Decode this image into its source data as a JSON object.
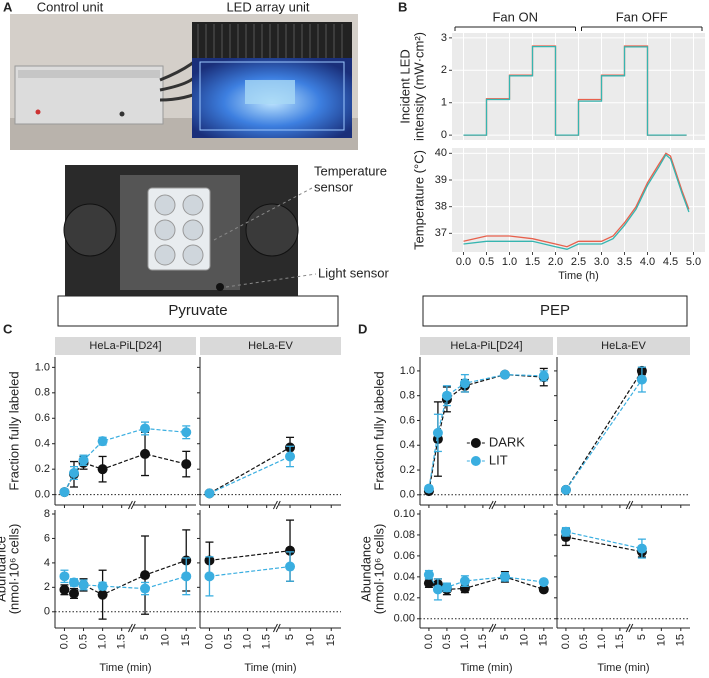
{
  "panel_labels": [
    "A",
    "B",
    "C",
    "D"
  ],
  "photos": {
    "labels": [
      "Control unit",
      "LED array unit"
    ],
    "callouts": [
      {
        "lines": [
          "Temperature",
          "sensor"
        ]
      },
      {
        "lines": [
          "Light sensor"
        ]
      }
    ]
  },
  "chart_data": [
    {
      "type": "line",
      "annotations": [
        "Fan ON",
        "Fan OFF"
      ],
      "ylabel": [
        "Incident LED",
        "intensity (mW·cm²)"
      ],
      "x": [
        0,
        0.5,
        0.5,
        1,
        1,
        1.5,
        1.5,
        2,
        2,
        2.5,
        2.5,
        3,
        3,
        3.5,
        3.5,
        4,
        4,
        4.85
      ],
      "series": [
        {
          "color": "#e8604c",
          "values": [
            0,
            0,
            1.12,
            1.12,
            1.85,
            1.85,
            2.75,
            2.75,
            0,
            0,
            1.1,
            1.1,
            1.85,
            1.85,
            2.75,
            2.75,
            0,
            0
          ]
        },
        {
          "color": "#36b5b0",
          "values": [
            0,
            0,
            1.1,
            1.1,
            1.83,
            1.83,
            2.73,
            2.73,
            0,
            0,
            1.05,
            1.05,
            1.83,
            1.83,
            2.72,
            2.72,
            0,
            0
          ]
        }
      ],
      "xlim": [
        -0.25,
        5.25
      ],
      "xticks": [
        0,
        0.5,
        1,
        1.5,
        2,
        2.5,
        3,
        3.5,
        4,
        4.5,
        5
      ],
      "ylim": [
        -0.15,
        3.15
      ],
      "yticks": [
        0,
        1,
        2,
        3
      ],
      "grid": true
    },
    {
      "type": "line",
      "ylabel": [
        "Temperature (°C)"
      ],
      "xlabel": "Time (h)",
      "x": [
        0,
        0.5,
        1,
        1.5,
        2,
        2.25,
        2.5,
        3,
        3.25,
        3.5,
        3.75,
        4,
        4.25,
        4.4,
        4.5,
        4.75,
        4.9
      ],
      "series": [
        {
          "color": "#e8604c",
          "values": [
            36.7,
            36.9,
            36.9,
            36.8,
            36.6,
            36.5,
            36.7,
            36.7,
            36.9,
            37.4,
            38.0,
            38.9,
            39.6,
            40.0,
            39.9,
            38.6,
            37.9
          ]
        },
        {
          "color": "#36b5b0",
          "values": [
            36.6,
            36.7,
            36.7,
            36.7,
            36.5,
            36.4,
            36.6,
            36.6,
            36.8,
            37.3,
            37.9,
            38.8,
            39.5,
            39.95,
            39.8,
            38.5,
            37.8
          ]
        }
      ],
      "xlim": [
        -0.25,
        5.25
      ],
      "xticks": [
        {
          "value": 0,
          "label": "0.0"
        },
        0.5,
        {
          "value": 1,
          "label": "1.0"
        },
        1.5,
        {
          "value": 2,
          "label": "2.0"
        },
        2.5,
        {
          "value": 3,
          "label": "3.0"
        },
        3.5,
        {
          "value": 4,
          "label": "4.0"
        },
        4.5,
        {
          "value": 5,
          "label": "5.0"
        }
      ],
      "ylim": [
        36.3,
        40.2
      ],
      "yticks": [
        37,
        38,
        39,
        40
      ],
      "grid": true
    },
    {
      "type": "facet",
      "title": "Pyruvate",
      "facets": [
        "HeLa-PiL[D24]",
        "HeLa-EV"
      ],
      "xlabel": "Time (min)",
      "colors": [
        "#111111",
        "#3aaee0"
      ],
      "xlim_segments": [
        [
          -0.1,
          1.6
        ],
        [
          3,
          16
        ]
      ],
      "xticks": [
        {
          "value": 0,
          "label": "0.0"
        },
        0.5,
        {
          "value": 1,
          "label": "1.0"
        },
        1.5,
        5,
        10,
        15
      ],
      "rows": [
        {
          "ylabel": [
            "Fraction fully labeled"
          ],
          "ylim": [
            -0.05,
            1.05
          ],
          "hline": 0,
          "yticks": [
            {
              "value": 0,
              "label": "0.0"
            },
            0.2,
            0.4,
            0.6,
            0.8,
            {
              "value": 1,
              "label": "1.0"
            }
          ],
          "panels": [
            {
              "x": [
                0,
                0.25,
                0.5,
                1,
                5,
                15
              ],
              "series": [
                {
                  "values": [
                    0.02,
                    0.16,
                    0.25,
                    0.2,
                    0.32,
                    0.24
                  ],
                  "errors": [
                    0.01,
                    0.1,
                    0.05,
                    0.1,
                    0.17,
                    0.1
                  ]
                },
                {
                  "values": [
                    0.02,
                    0.17,
                    0.27,
                    0.42,
                    0.52,
                    0.49
                  ],
                  "errors": [
                    0.01,
                    0.05,
                    0.04,
                    0.03,
                    0.05,
                    0.05
                  ]
                }
              ]
            },
            {
              "x": [
                0,
                5
              ],
              "series": [
                {
                  "values": [
                    0.01,
                    0.37
                  ],
                  "errors": [
                    0.01,
                    0.08
                  ]
                },
                {
                  "values": [
                    0.01,
                    0.3
                  ],
                  "errors": [
                    0.01,
                    0.08
                  ]
                }
              ]
            }
          ]
        },
        {
          "ylabel": [
            "Abundance",
            "(nmol·10⁶ cells)"
          ],
          "ylim": [
            -1,
            8
          ],
          "hline": 0,
          "yticks": [
            0,
            2,
            4,
            6,
            8
          ],
          "panels": [
            {
              "x": [
                0,
                0.25,
                0.5,
                1,
                5,
                15
              ],
              "series": [
                {
                  "values": [
                    1.8,
                    1.5,
                    2.2,
                    1.4,
                    3.0,
                    4.2
                  ],
                  "errors": [
                    0.4,
                    0.4,
                    0.5,
                    2,
                    3.2,
                    2.5
                  ]
                },
                {
                  "values": [
                    2.9,
                    2.4,
                    2.2,
                    2.1,
                    1.9,
                    2.9
                  ],
                  "errors": [
                    0.5,
                    0.3,
                    0.4,
                    0.3,
                    0.5,
                    1.5
                  ]
                }
              ]
            },
            {
              "x": [
                0,
                5
              ],
              "series": [
                {
                  "values": [
                    4.2,
                    5.0
                  ],
                  "errors": [
                    1.5,
                    2.5
                  ]
                },
                {
                  "values": [
                    2.9,
                    3.7
                  ],
                  "errors": [
                    1.6,
                    1.2
                  ]
                }
              ]
            }
          ]
        }
      ]
    },
    {
      "type": "facet",
      "title": "PEP",
      "facets": [
        "HeLa-PiL[D24]",
        "HeLa-EV"
      ],
      "xlabel": "Time (min)",
      "colors": [
        "#111111",
        "#3aaee0"
      ],
      "legend": [
        "DARK",
        "LIT"
      ],
      "xlim_segments": [
        [
          -0.1,
          1.6
        ],
        [
          3,
          16
        ]
      ],
      "xticks": [
        {
          "value": 0,
          "label": "0.0"
        },
        0.5,
        {
          "value": 1,
          "label": "1.0"
        },
        1.5,
        5,
        10,
        15
      ],
      "rows": [
        {
          "ylabel": [
            "Fraction fully labeled"
          ],
          "ylim": [
            -0.05,
            1.08
          ],
          "hline": 0,
          "yticks": [
            {
              "value": 0,
              "label": "0.0"
            },
            0.2,
            0.4,
            0.6,
            0.8,
            {
              "value": 1,
              "label": "1.0"
            }
          ],
          "panels": [
            {
              "x": [
                0,
                0.25,
                0.5,
                1,
                5,
                15
              ],
              "series": [
                {
                  "values": [
                    0.03,
                    0.45,
                    0.77,
                    0.88,
                    0.97,
                    0.95
                  ],
                  "errors": [
                    0.02,
                    0.3,
                    0.1,
                    0.05,
                    0.02,
                    0.07
                  ]
                },
                {
                  "values": [
                    0.05,
                    0.5,
                    0.8,
                    0.9,
                    0.97,
                    0.96
                  ],
                  "errors": [
                    0.02,
                    0.15,
                    0.08,
                    0.07,
                    0.02,
                    0.04
                  ]
                }
              ]
            },
            {
              "x": [
                0,
                5
              ],
              "series": [
                {
                  "values": [
                    0.04,
                    1.0
                  ],
                  "errors": [
                    0.01,
                    0.03
                  ]
                },
                {
                  "values": [
                    0.04,
                    0.93
                  ],
                  "errors": [
                    0.01,
                    0.1
                  ]
                }
              ]
            }
          ]
        },
        {
          "ylabel": [
            "Abundance",
            "(nmol·10⁶ cells)"
          ],
          "ylim": [
            -0.005,
            0.1
          ],
          "hline": 0,
          "yticks": [
            {
              "value": 0,
              "label": "0.00"
            },
            {
              "value": 0.02,
              "label": "0.02"
            },
            {
              "value": 0.04,
              "label": "0.04"
            },
            {
              "value": 0.06,
              "label": "0.06"
            },
            {
              "value": 0.08,
              "label": "0.08"
            },
            {
              "value": 0.1,
              "label": "0.10"
            }
          ],
          "panels": [
            {
              "x": [
                0,
                0.25,
                0.5,
                1,
                5,
                15
              ],
              "series": [
                {
                  "values": [
                    0.034,
                    0.033,
                    0.028,
                    0.029,
                    0.04,
                    0.028
                  ],
                  "errors": [
                    0.004,
                    0.005,
                    0.005,
                    0.004,
                    0.005,
                    0.002
                  ]
                },
                {
                  "values": [
                    0.042,
                    0.028,
                    0.03,
                    0.036,
                    0.04,
                    0.035
                  ],
                  "errors": [
                    0.004,
                    0.01,
                    0.004,
                    0.005,
                    0.004,
                    0.002
                  ]
                }
              ]
            },
            {
              "x": [
                0,
                5
              ],
              "series": [
                {
                  "values": [
                    0.078,
                    0.064
                  ],
                  "errors": [
                    0.008,
                    0.005
                  ]
                },
                {
                  "values": [
                    0.083,
                    0.067
                  ],
                  "errors": [
                    0.004,
                    0.009
                  ]
                }
              ]
            }
          ]
        }
      ]
    }
  ]
}
